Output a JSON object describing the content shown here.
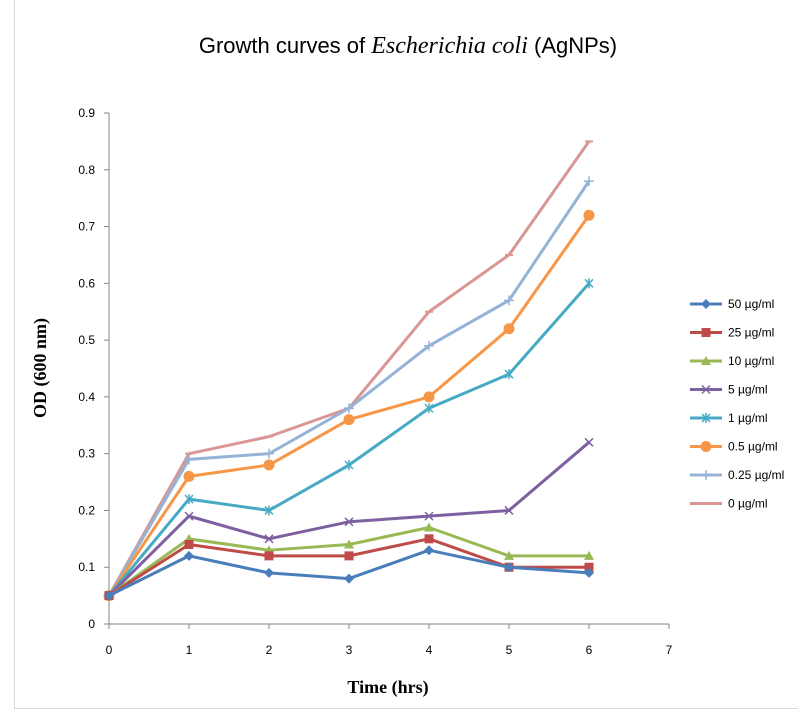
{
  "chart_data": {
    "type": "line",
    "title": {
      "prefix": "Growth curves of ",
      "italic": "Escherichia coli",
      "suffix": " (AgNPs)"
    },
    "xlabel": "Time (hrs)",
    "ylabel": "OD (600 nm)",
    "xlim": [
      0,
      7
    ],
    "ylim": [
      0,
      0.9
    ],
    "x_ticks": [
      0,
      1,
      2,
      3,
      4,
      5,
      6,
      7
    ],
    "y_ticks": [
      0,
      0.1,
      0.2,
      0.3,
      0.4,
      0.5,
      0.6,
      0.7,
      0.8,
      0.9
    ],
    "grid": false,
    "legend_position": "right",
    "x": [
      0,
      1,
      2,
      3,
      4,
      5,
      6
    ],
    "series": [
      {
        "name": "50 µg/ml",
        "color": "#4a7ebb",
        "marker": "diamond",
        "values": [
          0.05,
          0.12,
          0.09,
          0.08,
          0.13,
          0.1,
          0.09
        ]
      },
      {
        "name": "25 µg/ml",
        "color": "#be4b48",
        "marker": "square",
        "values": [
          0.05,
          0.14,
          0.12,
          0.12,
          0.15,
          0.1,
          0.1
        ]
      },
      {
        "name": "10 µg/ml",
        "color": "#98b954",
        "marker": "triangle",
        "values": [
          0.05,
          0.15,
          0.13,
          0.14,
          0.17,
          0.12,
          0.12
        ]
      },
      {
        "name": "5 µg/ml",
        "color": "#7d60a0",
        "marker": "x",
        "values": [
          0.05,
          0.19,
          0.15,
          0.18,
          0.19,
          0.2,
          0.32
        ]
      },
      {
        "name": "1 µg/ml",
        "color": "#46aac5",
        "marker": "star",
        "values": [
          0.05,
          0.22,
          0.2,
          0.28,
          0.38,
          0.44,
          0.6
        ]
      },
      {
        "name": "0.5 µg/ml",
        "color": "#f79646",
        "marker": "circle",
        "values": [
          0.05,
          0.26,
          0.28,
          0.36,
          0.4,
          0.52,
          0.72
        ]
      },
      {
        "name": "0.25 µg/ml",
        "color": "#95b3d7",
        "marker": "plus",
        "values": [
          0.05,
          0.29,
          0.3,
          0.38,
          0.49,
          0.57,
          0.78
        ]
      },
      {
        "name": "0 µg/ml",
        "color": "#d99694",
        "marker": "dash",
        "values": [
          0.05,
          0.3,
          0.33,
          0.38,
          0.55,
          0.65,
          0.85
        ]
      }
    ]
  }
}
